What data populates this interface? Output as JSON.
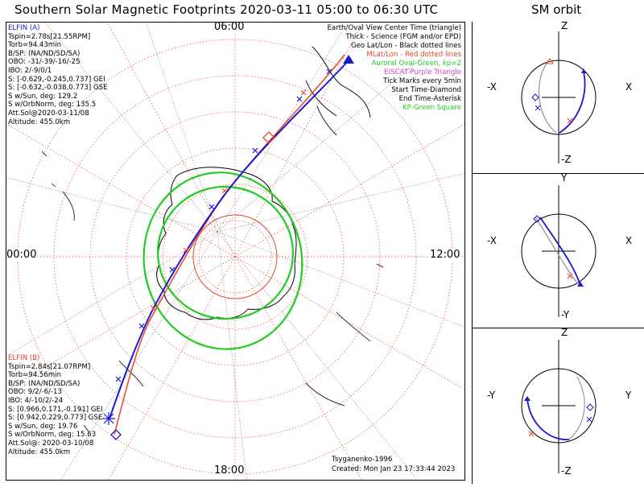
{
  "title": "Southern Solar Magnetic Footprints 2020-03-11 05:00 to 06:30 UTC",
  "sm_title": "SM orbit",
  "hours": {
    "top": "06:00",
    "left": "00:00",
    "right": "12:00",
    "bottom": "18:00"
  },
  "elfin_a": {
    "name": "ELFIN (A)",
    "lines": [
      "Tspin=2.78s[21.55RPM]",
      "Torb=94.43min",
      "B/SP: (NA/ND/SD/SA)",
      "OBO: -31/-39/-16/-25",
      "IBO: 2/-9/0/1",
      "S: [-0.629,-0.245,0.737] GEI",
      "S: [-0.632,-0.038,0.773] GSE",
      "S w/Sun, deg: 129.2",
      "S w/OrbNorm, deg: 135.5",
      "Att.Sol@2020-03-11/08",
      "Altitude: 455.0km"
    ]
  },
  "elfin_b": {
    "name": "ELFIN (B)",
    "lines": [
      "Tspin=2.84s[21.07RPM]",
      "Torb=94.56min",
      "B/SP: (NA/ND/SD/SA)",
      "OBO: 9/2/-6/-13",
      "IBO: 4/-10/2/-24",
      "S: [0.966,0.171,-0.191] GEI",
      "S: [0.942,0.229,0.773] GSE",
      "S w/Sun, deg: 19.76",
      "S w/OrbNorm, deg: 15.63",
      "Att.Sol@: 2020-03-10/08",
      "Altitude: 455.0km"
    ]
  },
  "legend": [
    {
      "text": "Earth/Oval View Center Time (triangle)",
      "color": "#000000"
    },
    {
      "text": "Thick - Science (FGM and/or EPD)",
      "color": "#000000"
    },
    {
      "text": "Geo Lat/Lon - Black dotted lines",
      "color": "#000000"
    },
    {
      "text": "MLat/Lon - Red dotted lines",
      "color": "#e8452c"
    },
    {
      "text": "Auroral Oval-Green, kp=2",
      "color": "#22cc22"
    },
    {
      "text": "EISCAT-Purple Triangle",
      "color": "#cc44cc"
    },
    {
      "text": "Tick Marks every 5min",
      "color": "#000000"
    },
    {
      "text": "Start Time-Diamond",
      "color": "#000000"
    },
    {
      "text": "End Time-Asterisk",
      "color": "#000000"
    },
    {
      "text": "KP-Green Square",
      "color": "#22cc22"
    }
  ],
  "model": "Tsyganenko-1996",
  "created": "Created: Mon Jan 23 17:33:44 2023",
  "panels": [
    {
      "top": "Z",
      "bottom": "-Z",
      "left": "-X",
      "right": "X"
    },
    {
      "top": "Y",
      "bottom": "-Y",
      "left": "-X",
      "right": "X"
    },
    {
      "top": "Z",
      "bottom": "-Z",
      "left": "-Y",
      "right": "Y"
    }
  ],
  "colors": {
    "elfin_a": "#1a1acc",
    "elfin_b": "#e8452c",
    "oval": "#22cc22",
    "grid": "#e8452c"
  },
  "chart_data": {
    "type": "line",
    "projection": "southern-hemisphere polar (magnetic local time)",
    "series": [
      {
        "name": "ELFIN (A)",
        "color": "#1a1acc"
      },
      {
        "name": "ELFIN (B)",
        "color": "#e8452c"
      }
    ],
    "mlt_labels": [
      "00:00",
      "06:00",
      "12:00",
      "18:00"
    ]
  }
}
